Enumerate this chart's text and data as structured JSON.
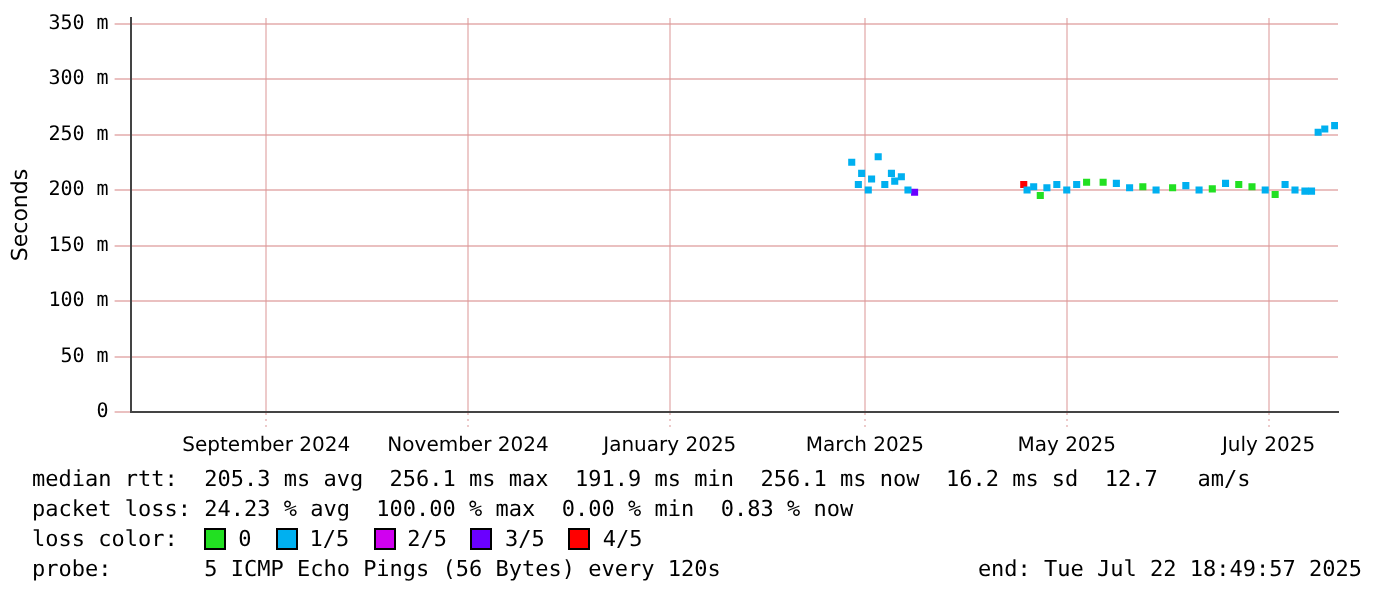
{
  "chart_data": {
    "type": "scatter",
    "ylabel": "Seconds",
    "legend_title": "loss color:",
    "legend": "bottom",
    "grid": true,
    "marker": "square",
    "xlim": [
      "2024-07-22",
      "2025-07-22"
    ],
    "xticks": [
      {
        "value": "2024-09-01",
        "label": "September 2024"
      },
      {
        "value": "2024-11-01",
        "label": "November 2024"
      },
      {
        "value": "2025-01-01",
        "label": "January 2025"
      },
      {
        "value": "2025-03-01",
        "label": "March 2025"
      },
      {
        "value": "2025-05-01",
        "label": "May 2025"
      },
      {
        "value": "2025-07-01",
        "label": "July 2025"
      }
    ],
    "ylim": [
      0,
      355
    ],
    "yticks": [
      {
        "value": 0,
        "label": "0"
      },
      {
        "value": 50,
        "label": "50 m"
      },
      {
        "value": 100,
        "label": "100 m"
      },
      {
        "value": 150,
        "label": "150 m"
      },
      {
        "value": 200,
        "label": "200 m"
      },
      {
        "value": 250,
        "label": "250 m"
      },
      {
        "value": 300,
        "label": "300 m"
      },
      {
        "value": 350,
        "label": "350 m"
      }
    ],
    "series": [
      {
        "name": "0",
        "color": "#22e022",
        "x": [
          "2025-04-23",
          "2025-05-07",
          "2025-05-12",
          "2025-05-24",
          "2025-06-02",
          "2025-06-14",
          "2025-06-22",
          "2025-06-26",
          "2025-07-03"
        ],
        "values": [
          195,
          207,
          207,
          203,
          202,
          201,
          205,
          203,
          196
        ]
      },
      {
        "name": "1/5",
        "color": "#00b0f0",
        "x": [
          "2025-02-25",
          "2025-02-27",
          "2025-02-28",
          "2025-03-02",
          "2025-03-03",
          "2025-03-05",
          "2025-03-07",
          "2025-03-09",
          "2025-03-10",
          "2025-03-12",
          "2025-03-14",
          "2025-04-19",
          "2025-04-21",
          "2025-04-25",
          "2025-04-28",
          "2025-05-01",
          "2025-05-04",
          "2025-05-16",
          "2025-05-20",
          "2025-05-28",
          "2025-06-06",
          "2025-06-10",
          "2025-06-18",
          "2025-06-30",
          "2025-07-06",
          "2025-07-09",
          "2025-07-12",
          "2025-07-14",
          "2025-07-16",
          "2025-07-18",
          "2025-07-21"
        ],
        "values": [
          225,
          205,
          215,
          200,
          210,
          230,
          205,
          215,
          208,
          212,
          200,
          200,
          203,
          202,
          205,
          200,
          205,
          206,
          202,
          200,
          204,
          200,
          206,
          200,
          205,
          200,
          199,
          199,
          252,
          255,
          258
        ]
      },
      {
        "name": "2/5",
        "color": "#d000f0"
      },
      {
        "name": "3/5",
        "color": "#6a00ff",
        "x": [
          "2025-03-16"
        ],
        "values": [
          198
        ]
      },
      {
        "name": "4/5",
        "color": "#ff0000",
        "x": [
          "2025-04-18"
        ],
        "values": [
          205
        ]
      }
    ],
    "annotations": [
      "median rtt:  205.3 ms avg  256.1 ms max  191.9 ms min  256.1 ms now  16.2 ms sd  12.7   am/s",
      "packet loss: 24.23 % avg  100.00 % max  0.00 % min  0.83 % now",
      "probe:       5 ICMP Echo Pings (56 Bytes) every 120s",
      "end: Tue Jul 22 18:49:57 2025"
    ]
  }
}
